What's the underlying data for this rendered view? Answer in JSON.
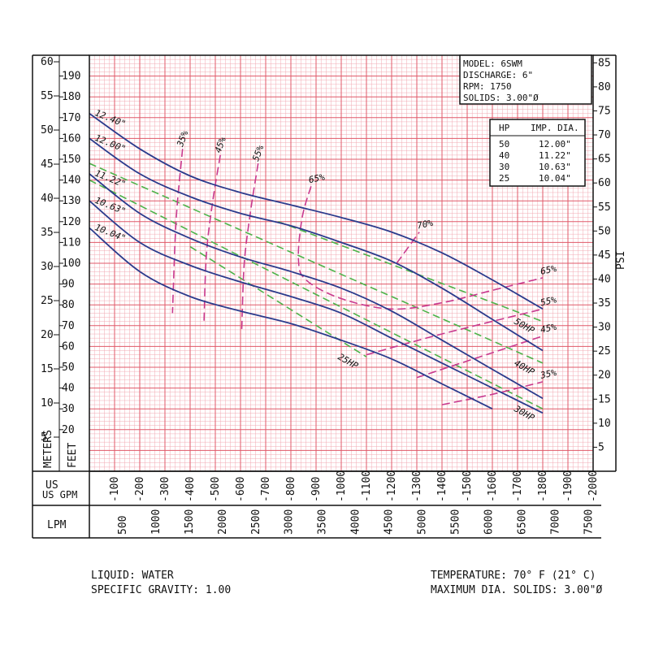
{
  "chart_data": {
    "type": "line",
    "model_box": {
      "lines": [
        "MODEL: 6SWM",
        "DISCHARGE: 6\"",
        "RPM: 1750",
        "SOLIDS: 3.00\"Ø"
      ]
    },
    "hp_table": {
      "headers": [
        "HP",
        "IMP. DIA."
      ],
      "rows": [
        [
          "50",
          "12.00\""
        ],
        [
          "40",
          "11.22\""
        ],
        [
          "30",
          "10.63\""
        ],
        [
          "25",
          "10.04\""
        ]
      ]
    },
    "axes": {
      "meters_label": "METERS",
      "feet_label": "FEET",
      "psi_label": "PSI",
      "usgpm_label": "US GPM",
      "lpm_label": "LPM",
      "feet_range": [
        0,
        200
      ],
      "gpm_range": [
        0,
        2000
      ],
      "meters_ticks": [
        "60",
        "55",
        "50",
        "45",
        "40",
        "35",
        "30",
        "25",
        "20",
        "15",
        "10",
        "5"
      ],
      "feet_ticks": [
        "190",
        "180",
        "170",
        "160",
        "150",
        "140",
        "130",
        "120",
        "110",
        "100",
        "90",
        "80",
        "70",
        "60",
        "50",
        "40",
        "30",
        "20"
      ],
      "psi_ticks": [
        "85",
        "80",
        "75",
        "70",
        "65",
        "60",
        "55",
        "50",
        "45",
        "40",
        "35",
        "30",
        "25",
        "20",
        "15",
        "10",
        "5"
      ],
      "gpm_ticks": [
        "-100",
        "-200",
        "-300",
        "-400",
        "-500",
        "-600",
        "-700",
        "-800",
        "-900",
        "-1000",
        "-1100",
        "-1200",
        "-1300",
        "-1400",
        "-1500",
        "-1600",
        "-1700",
        "-1800",
        "-1900",
        "-2000"
      ],
      "lpm_ticks": [
        "500",
        "1000",
        "1500",
        "2000",
        "2500",
        "3000",
        "3500",
        "4000",
        "4500",
        "5000",
        "5500",
        "6000",
        "6500",
        "7000",
        "7500"
      ]
    },
    "impeller_curves": [
      {
        "name": "12.40\"",
        "points": [
          [
            0,
            172
          ],
          [
            200,
            155
          ],
          [
            400,
            142
          ],
          [
            600,
            134
          ],
          [
            800,
            128
          ],
          [
            1000,
            122
          ],
          [
            1200,
            115
          ],
          [
            1400,
            105
          ],
          [
            1600,
            92
          ],
          [
            1800,
            78
          ]
        ]
      },
      {
        "name": "12.00\"",
        "points": [
          [
            0,
            160
          ],
          [
            200,
            143
          ],
          [
            400,
            132
          ],
          [
            600,
            124
          ],
          [
            800,
            118
          ],
          [
            1000,
            110
          ],
          [
            1200,
            101
          ],
          [
            1400,
            88
          ],
          [
            1600,
            73
          ],
          [
            1800,
            58
          ]
        ]
      },
      {
        "name": "11.22\"",
        "points": [
          [
            0,
            143
          ],
          [
            200,
            124
          ],
          [
            400,
            112
          ],
          [
            600,
            103
          ],
          [
            800,
            96
          ],
          [
            1000,
            88
          ],
          [
            1200,
            77
          ],
          [
            1400,
            63
          ],
          [
            1600,
            49
          ],
          [
            1800,
            35
          ]
        ]
      },
      {
        "name": "10.63\"",
        "points": [
          [
            0,
            130
          ],
          [
            200,
            110
          ],
          [
            400,
            99
          ],
          [
            600,
            91
          ],
          [
            800,
            84
          ],
          [
            1000,
            76
          ],
          [
            1200,
            64
          ],
          [
            1400,
            52
          ],
          [
            1600,
            40
          ],
          [
            1800,
            28
          ]
        ]
      },
      {
        "name": "10.04\"",
        "points": [
          [
            0,
            117
          ],
          [
            200,
            96
          ],
          [
            400,
            84
          ],
          [
            600,
            77
          ],
          [
            800,
            71
          ],
          [
            1000,
            63
          ],
          [
            1200,
            54
          ],
          [
            1400,
            42
          ],
          [
            1600,
            30
          ]
        ]
      }
    ],
    "hp_lines": [
      {
        "name": "25HP",
        "points": [
          [
            400,
            108
          ],
          [
            1100,
            55
          ]
        ]
      },
      {
        "name": "30HP",
        "points": [
          [
            0,
            140
          ],
          [
            1800,
            30
          ]
        ]
      },
      {
        "name": "40HP",
        "points": [
          [
            0,
            148
          ],
          [
            1800,
            52
          ]
        ]
      },
      {
        "name": "50HP",
        "points": [
          [
            750,
            120
          ],
          [
            1800,
            72
          ]
        ]
      }
    ],
    "efficiency_curves": [
      {
        "name": "35%",
        "points": [
          [
            370,
            155
          ],
          [
            350,
            130
          ],
          [
            340,
            110
          ],
          [
            330,
            76
          ]
        ]
      },
      {
        "name": "45%",
        "points": [
          [
            520,
            152
          ],
          [
            490,
            130
          ],
          [
            465,
            105
          ],
          [
            455,
            72
          ]
        ]
      },
      {
        "name": "55%",
        "points": [
          [
            670,
            148
          ],
          [
            640,
            125
          ],
          [
            615,
            100
          ],
          [
            605,
            68
          ]
        ]
      },
      {
        "name": "65%",
        "points": [
          [
            880,
            137
          ],
          [
            845,
            122
          ],
          [
            830,
            102
          ],
          [
            860,
            92
          ],
          [
            1000,
            83
          ],
          [
            1200,
            78
          ],
          [
            1400,
            81
          ],
          [
            1600,
            87
          ],
          [
            1800,
            93
          ]
        ]
      },
      {
        "name": "70%",
        "points": [
          [
            1220,
            100
          ],
          [
            1310,
            115
          ]
        ]
      },
      {
        "name": "65%",
        "points": [
          [
            1800,
            93
          ]
        ]
      },
      {
        "name": "55%",
        "points": [
          [
            1100,
            56
          ],
          [
            1400,
            66
          ],
          [
            1800,
            78
          ]
        ]
      },
      {
        "name": "45%",
        "points": [
          [
            1300,
            45
          ],
          [
            1550,
            55
          ],
          [
            1800,
            65
          ]
        ]
      },
      {
        "name": "35%",
        "points": [
          [
            1400,
            32
          ],
          [
            1600,
            37
          ],
          [
            1800,
            43
          ]
        ]
      }
    ]
  },
  "footer": {
    "liquid": "LIQUID: WATER",
    "gravity": "SPECIFIC GRAVITY: 1.00",
    "temperature": "TEMPERATURE: 70° F (21° C)",
    "max_solids": "MAXIMUM DIA. SOLIDS: 3.00\"Ø"
  },
  "colors": {
    "grid_major": "#e05a6a",
    "grid_minor": "#f2a9b3",
    "impeller": "#2b3b8c",
    "hp": "#4db34a",
    "efficiency": "#c8398e"
  }
}
